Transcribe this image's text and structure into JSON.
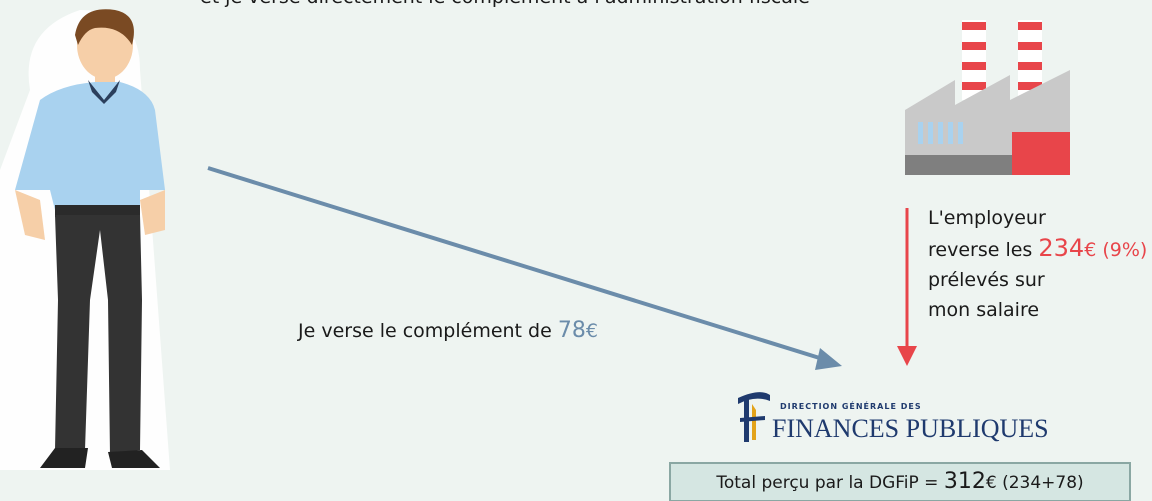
{
  "top_caption": "et je verse directement le complément à l'administration fiscale",
  "employer": {
    "line1": "L'employeur",
    "line2_prefix": "reverse les",
    "amount": "234",
    "currency": "€",
    "rate": "(9%)",
    "line3": "prélevés sur",
    "line4": "mon salaire"
  },
  "employee": {
    "text": "Je verse le complément de",
    "amount": "78",
    "currency": "€"
  },
  "logo": {
    "line1": "DIRECTION GÉNÉRALE DES",
    "line2": "FINANCES PUBLIQUES"
  },
  "total": {
    "label": "Total perçu par la DGFiP =",
    "amount": "312",
    "currency": "€",
    "detail": "(234+78)"
  }
}
